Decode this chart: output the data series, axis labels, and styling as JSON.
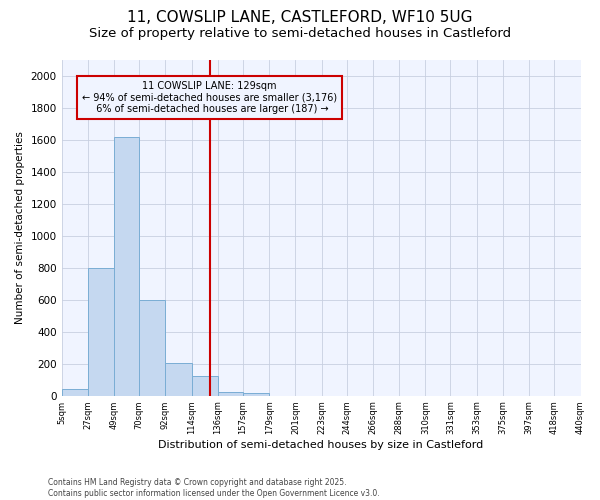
{
  "title_line1": "11, COWSLIP LANE, CASTLEFORD, WF10 5UG",
  "title_line2": "Size of property relative to semi-detached houses in Castleford",
  "xlabel": "Distribution of semi-detached houses by size in Castleford",
  "ylabel": "Number of semi-detached properties",
  "bins": [
    "5sqm",
    "27sqm",
    "49sqm",
    "70sqm",
    "92sqm",
    "114sqm",
    "136sqm",
    "157sqm",
    "179sqm",
    "201sqm",
    "223sqm",
    "244sqm",
    "266sqm",
    "288sqm",
    "310sqm",
    "331sqm",
    "353sqm",
    "375sqm",
    "397sqm",
    "418sqm",
    "440sqm"
  ],
  "bin_edges": [
    5,
    27,
    49,
    70,
    92,
    114,
    136,
    157,
    179,
    201,
    223,
    244,
    266,
    288,
    310,
    331,
    353,
    375,
    397,
    418,
    440
  ],
  "bar_values": [
    40,
    800,
    1620,
    600,
    205,
    125,
    25,
    15,
    0,
    0,
    0,
    0,
    0,
    0,
    0,
    0,
    0,
    0,
    0,
    0
  ],
  "bar_color": "#c5d8f0",
  "bar_edge_color": "#7aadd4",
  "property_size": 129,
  "vline_color": "#cc0000",
  "annotation_line1": "11 COWSLIP LANE: 129sqm",
  "annotation_line2": "← 94% of semi-detached houses are smaller (3,176)",
  "annotation_line3": "  6% of semi-detached houses are larger (187) →",
  "annotation_box_color": "#cc0000",
  "plot_bg_color": "#f0f4ff",
  "fig_bg_color": "#ffffff",
  "grid_color": "#c8cfe0",
  "ylim": [
    0,
    2100
  ],
  "yticks": [
    0,
    200,
    400,
    600,
    800,
    1000,
    1200,
    1400,
    1600,
    1800,
    2000
  ],
  "footnote": "Contains HM Land Registry data © Crown copyright and database right 2025.\nContains public sector information licensed under the Open Government Licence v3.0.",
  "title_fontsize": 11,
  "subtitle_fontsize": 9.5
}
